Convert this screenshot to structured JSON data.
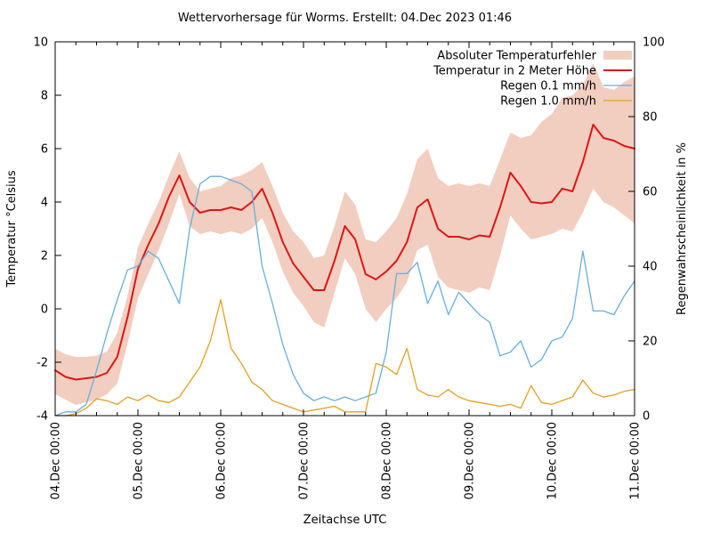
{
  "title": "Wettervorhersage für Worms. Erstellt: 04.Dec 2023 01:46",
  "chart_data": {
    "type": "line",
    "title": "Wettervorhersage für Worms. Erstellt: 04.Dec 2023 01:46",
    "xlabel": "Zeitachse UTC",
    "ylabel_left": "Temperatur °Celsius",
    "ylabel_right": "Regenwahrscheinlichkeit in %",
    "grid": false,
    "legend_position": "top-right-inside",
    "x_tick_labels": [
      "04.Dec 00:00",
      "05.Dec 00:00",
      "06.Dec 00:00",
      "07.Dec 00:00",
      "08.Dec 00:00",
      "09.Dec 00:00",
      "10.Dec 00:00",
      "11.Dec 00:00"
    ],
    "x_minor_tick_hours": 6,
    "x_total_days": 7,
    "sample_step_hours": 3,
    "ylim_left": [
      -4,
      10
    ],
    "yticks_left": [
      -4,
      -2,
      0,
      2,
      4,
      6,
      8,
      10
    ],
    "ylim_right": [
      0,
      100
    ],
    "yticks_right": [
      0,
      20,
      40,
      60,
      80,
      100
    ],
    "series": [
      {
        "name": "Absoluter Temperaturfehler",
        "type": "band",
        "axis": "left",
        "color": "#f1cec0",
        "upper": [
          -1.5,
          -1.7,
          -1.8,
          -1.8,
          -1.75,
          -1.6,
          -0.9,
          0.5,
          2.3,
          3.2,
          4.0,
          5.0,
          5.9,
          4.9,
          4.4,
          4.5,
          4.6,
          4.9,
          5.0,
          5.2,
          5.5,
          4.6,
          3.6,
          2.9,
          2.5,
          1.9,
          2.0,
          3.1,
          4.4,
          3.9,
          2.6,
          2.5,
          2.9,
          3.4,
          4.3,
          5.6,
          6.0,
          4.9,
          4.6,
          4.7,
          4.6,
          4.7,
          4.6,
          5.6,
          6.6,
          6.4,
          6.5,
          7.0,
          7.3,
          7.9,
          8.0,
          8.4,
          9.2,
          8.3,
          8.2,
          8.5,
          8.7
        ],
        "lower": [
          -3.2,
          -3.4,
          -3.6,
          -3.5,
          -3.4,
          -3.2,
          -2.8,
          -1.3,
          0.4,
          1.3,
          2.2,
          3.2,
          4.3,
          3.1,
          2.8,
          2.9,
          2.8,
          2.9,
          2.8,
          3.0,
          3.4,
          2.5,
          1.4,
          0.6,
          0.1,
          -0.5,
          -0.7,
          0.6,
          1.9,
          1.3,
          0.0,
          -0.5,
          0.0,
          0.4,
          1.0,
          2.2,
          2.4,
          1.2,
          0.8,
          0.7,
          0.6,
          0.8,
          0.7,
          2.0,
          3.5,
          3.0,
          2.6,
          2.7,
          2.8,
          3.0,
          2.9,
          3.6,
          4.5,
          4.0,
          3.8,
          3.5,
          3.2
        ]
      },
      {
        "name": "Temperatur in 2 Meter Höhe",
        "type": "line",
        "axis": "left",
        "color": "#e01414",
        "width": 2,
        "values": [
          -2.3,
          -2.55,
          -2.65,
          -2.6,
          -2.55,
          -2.4,
          -1.8,
          -0.3,
          1.5,
          2.4,
          3.2,
          4.2,
          5.0,
          4.0,
          3.6,
          3.7,
          3.7,
          3.8,
          3.7,
          4.0,
          4.5,
          3.6,
          2.5,
          1.7,
          1.2,
          0.7,
          0.7,
          1.8,
          3.1,
          2.6,
          1.3,
          1.1,
          1.4,
          1.8,
          2.5,
          3.8,
          4.1,
          3.0,
          2.7,
          2.7,
          2.6,
          2.75,
          2.7,
          3.8,
          5.1,
          4.6,
          4.0,
          3.95,
          4.0,
          4.5,
          4.4,
          5.5,
          6.9,
          6.4,
          6.3,
          6.1,
          6.0
        ]
      },
      {
        "name": "Regen 0.1 mm/h",
        "type": "line",
        "axis": "right",
        "color": "#66aede",
        "width": 1.3,
        "values": [
          0,
          1,
          1,
          3,
          12,
          22,
          31,
          39,
          40,
          44,
          42,
          36,
          30,
          50,
          62,
          64,
          64,
          63,
          62,
          60,
          40,
          30,
          19,
          11,
          6,
          4,
          5,
          4,
          5,
          4,
          5,
          6,
          17,
          38,
          38,
          41,
          30,
          36,
          27,
          33,
          30,
          27,
          25,
          16,
          17,
          20,
          13,
          15,
          20,
          21,
          26,
          44,
          28,
          28,
          27,
          32,
          36
        ]
      },
      {
        "name": "Regen 1.0 mm/h",
        "type": "line",
        "axis": "right",
        "color": "#e2a020",
        "width": 1.3,
        "values": [
          0,
          0,
          0.5,
          2,
          4.5,
          4,
          3,
          5,
          4,
          5.5,
          4,
          3.5,
          5,
          9,
          13,
          20,
          31,
          18,
          14,
          9,
          7,
          4,
          3,
          2,
          1,
          1.5,
          2,
          2.5,
          1,
          1,
          1,
          14,
          13,
          11,
          18,
          7,
          5.5,
          5,
          7,
          5,
          4,
          3.5,
          3,
          2.5,
          3,
          2,
          8,
          3.5,
          3,
          4,
          5,
          9.5,
          6,
          5,
          5.5,
          6.5,
          7
        ]
      }
    ],
    "legend": [
      {
        "label": "Absoluter Temperaturfehler",
        "sample": "box",
        "color": "#f1cec0"
      },
      {
        "label": "Temperatur in 2 Meter Höhe",
        "sample": "line",
        "color": "#e01414"
      },
      {
        "label": "Regen 0.1 mm/h",
        "sample": "line",
        "color": "#66aede"
      },
      {
        "label": "Regen 1.0 mm/h",
        "sample": "line",
        "color": "#e2a020"
      }
    ]
  },
  "colors": {
    "background": "#ffffff",
    "border": "#000000",
    "text": "#000000",
    "temperature_line": "#e01414",
    "error_band": "#f1cec0",
    "rain_01_line": "#66aede",
    "rain_10_line": "#e2a020"
  }
}
